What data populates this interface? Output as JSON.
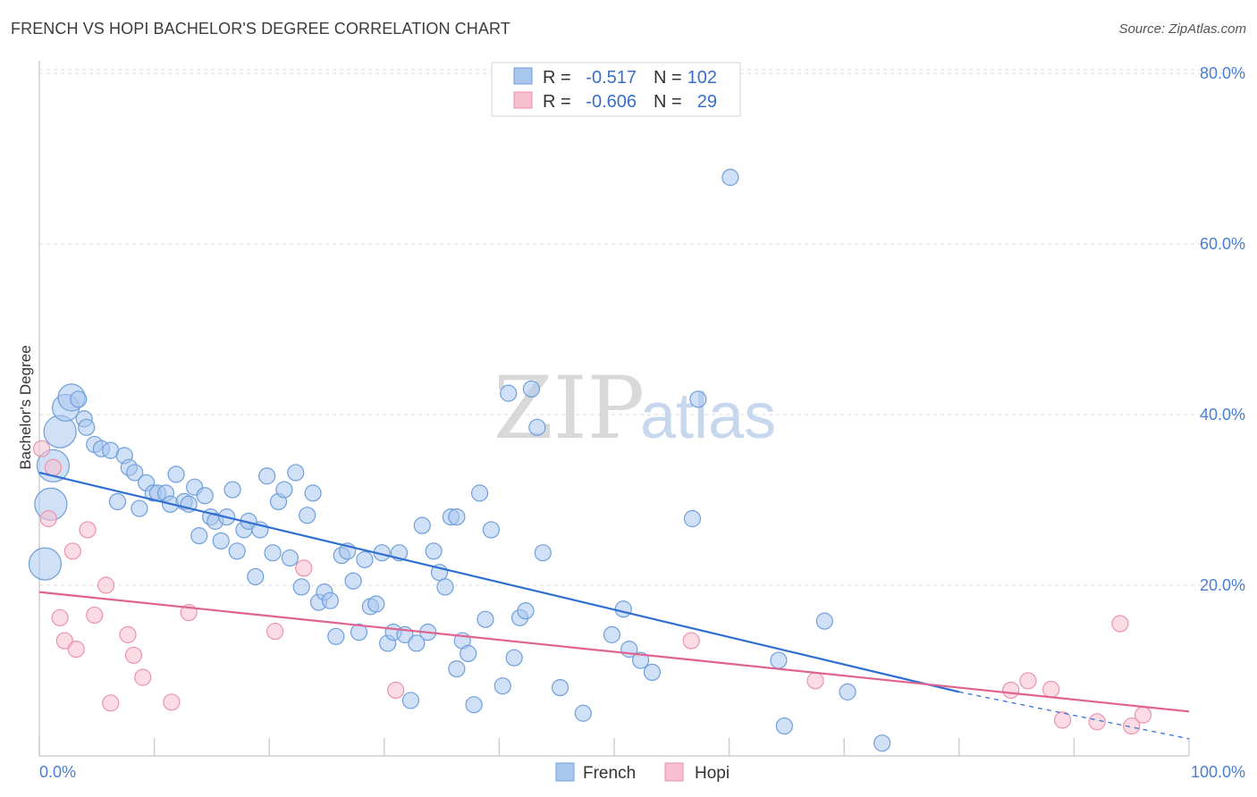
{
  "title": "FRENCH VS HOPI BACHELOR'S DEGREE CORRELATION CHART",
  "source": "Source: ZipAtlas.com",
  "watermark": {
    "zip": "ZIP",
    "atlas": "atlas"
  },
  "colors": {
    "french_fill": "#a9c7ee",
    "french_stroke": "#6f9fdb",
    "french_line": "#2f6fcf",
    "hopi_fill": "#f7bfd0",
    "hopi_stroke": "#eb92ad",
    "hopi_line": "#e0628f",
    "tick_text": "#4a7fd0",
    "grid": "#dedede"
  },
  "legend": {
    "rows": [
      {
        "r_label": "R =",
        "r_value": "-0.517",
        "n_label": "N =",
        "n_value": "102"
      },
      {
        "r_label": "R =",
        "r_value": "-0.606",
        "n_label": "N =",
        "n_value": "29"
      }
    ]
  },
  "bottom_legend": [
    "French",
    "Hopi"
  ],
  "chart_data": {
    "type": "scatter",
    "title": "FRENCH VS HOPI BACHELOR'S DEGREE CORRELATION CHART",
    "xlabel": "",
    "ylabel": "Bachelor's Degree",
    "xlim": [
      0,
      100
    ],
    "ylim": [
      0,
      85
    ],
    "x_tick_labels": [
      "0.0%",
      "100.0%"
    ],
    "y_ticks": [
      20,
      40,
      60,
      80
    ],
    "y_tick_labels": [
      "20.0%",
      "40.0%",
      "60.0%",
      "80.0%"
    ],
    "grid": true,
    "legend_position": "top-center",
    "series": [
      {
        "name": "French",
        "r": -0.517,
        "n": 102,
        "trend": {
          "x": [
            0,
            80
          ],
          "y": [
            33.2,
            7.5
          ],
          "dashed_to": [
            100,
            2.0
          ]
        },
        "points": [
          [
            0.5,
            22.5,
            3
          ],
          [
            1.0,
            29.5,
            3
          ],
          [
            1.2,
            34.0,
            3
          ],
          [
            1.8,
            38.0,
            3
          ],
          [
            2.3,
            40.8,
            2
          ],
          [
            2.8,
            42.0,
            2
          ],
          [
            3.4,
            41.8,
            1
          ],
          [
            3.9,
            39.5,
            1
          ],
          [
            4.1,
            38.5,
            1
          ],
          [
            4.8,
            36.5,
            1
          ],
          [
            5.4,
            36.0,
            1
          ],
          [
            6.2,
            35.8,
            1
          ],
          [
            6.8,
            29.8,
            1
          ],
          [
            7.4,
            35.2,
            1
          ],
          [
            7.8,
            33.8,
            1
          ],
          [
            8.3,
            33.2,
            1
          ],
          [
            8.7,
            29.0,
            1
          ],
          [
            9.3,
            32.0,
            1
          ],
          [
            9.9,
            30.8,
            1
          ],
          [
            10.3,
            30.8,
            1
          ],
          [
            11.0,
            30.8,
            1
          ],
          [
            11.4,
            29.5,
            1
          ],
          [
            11.9,
            33.0,
            1
          ],
          [
            12.6,
            29.8,
            1
          ],
          [
            13.0,
            29.5,
            1
          ],
          [
            13.5,
            31.5,
            1
          ],
          [
            13.9,
            25.8,
            1
          ],
          [
            14.4,
            30.5,
            1
          ],
          [
            14.9,
            28.0,
            1
          ],
          [
            15.3,
            27.5,
            1
          ],
          [
            15.8,
            25.2,
            1
          ],
          [
            16.3,
            28.0,
            1
          ],
          [
            16.8,
            31.2,
            1
          ],
          [
            17.2,
            24.0,
            1
          ],
          [
            17.8,
            26.5,
            1
          ],
          [
            18.2,
            27.5,
            1
          ],
          [
            18.8,
            21.0,
            1
          ],
          [
            19.2,
            26.5,
            1
          ],
          [
            19.8,
            32.8,
            1
          ],
          [
            20.3,
            23.8,
            1
          ],
          [
            20.8,
            29.8,
            1
          ],
          [
            21.3,
            31.2,
            1
          ],
          [
            21.8,
            23.2,
            1
          ],
          [
            22.3,
            33.2,
            1
          ],
          [
            22.8,
            19.8,
            1
          ],
          [
            23.3,
            28.2,
            1
          ],
          [
            23.8,
            30.8,
            1
          ],
          [
            24.3,
            18.0,
            1
          ],
          [
            24.8,
            19.2,
            1
          ],
          [
            25.3,
            18.2,
            1
          ],
          [
            25.8,
            14.0,
            1
          ],
          [
            26.3,
            23.5,
            1
          ],
          [
            26.8,
            24.0,
            1
          ],
          [
            27.3,
            20.5,
            1
          ],
          [
            27.8,
            14.5,
            1
          ],
          [
            28.3,
            23.0,
            1
          ],
          [
            28.8,
            17.5,
            1
          ],
          [
            29.3,
            17.8,
            1
          ],
          [
            29.8,
            23.8,
            1
          ],
          [
            30.3,
            13.2,
            1
          ],
          [
            30.8,
            14.5,
            1
          ],
          [
            31.3,
            23.8,
            1
          ],
          [
            31.8,
            14.2,
            1
          ],
          [
            32.3,
            6.5,
            1
          ],
          [
            32.8,
            13.2,
            1
          ],
          [
            33.3,
            27.0,
            1
          ],
          [
            33.8,
            14.5,
            1
          ],
          [
            34.3,
            24.0,
            1
          ],
          [
            34.8,
            21.5,
            1
          ],
          [
            35.3,
            19.8,
            1
          ],
          [
            35.8,
            28.0,
            1
          ],
          [
            36.3,
            10.2,
            1
          ],
          [
            36.8,
            13.5,
            1
          ],
          [
            37.3,
            12.0,
            1
          ],
          [
            37.8,
            6.0,
            1
          ],
          [
            38.3,
            30.8,
            1
          ],
          [
            38.8,
            16.0,
            1
          ],
          [
            39.3,
            26.5,
            1
          ],
          [
            40.3,
            8.2,
            1
          ],
          [
            40.8,
            42.5,
            1
          ],
          [
            41.3,
            11.5,
            1
          ],
          [
            41.8,
            16.2,
            1
          ],
          [
            42.3,
            17.0,
            1
          ],
          [
            42.8,
            43.0,
            1
          ],
          [
            43.3,
            38.5,
            1
          ],
          [
            43.8,
            23.8,
            1
          ],
          [
            45.3,
            8.0,
            1
          ],
          [
            47.3,
            5.0,
            1
          ],
          [
            49.8,
            14.2,
            1
          ],
          [
            50.8,
            17.2,
            1
          ],
          [
            51.3,
            12.5,
            1
          ],
          [
            52.3,
            11.2,
            1
          ],
          [
            53.3,
            9.8,
            1
          ],
          [
            56.8,
            27.8,
            1
          ],
          [
            57.3,
            41.8,
            1
          ],
          [
            60.1,
            67.8,
            1
          ],
          [
            64.3,
            11.2,
            1
          ],
          [
            64.8,
            3.5,
            1
          ],
          [
            68.3,
            15.8,
            1
          ],
          [
            70.3,
            7.5,
            1
          ],
          [
            73.3,
            1.5,
            1
          ],
          [
            36.3,
            28.0,
            1
          ]
        ]
      },
      {
        "name": "Hopi",
        "r": -0.606,
        "n": 29,
        "trend": {
          "x": [
            0,
            100
          ],
          "y": [
            19.2,
            5.2
          ]
        },
        "points": [
          [
            0.2,
            36.0,
            1
          ],
          [
            0.8,
            27.8,
            1
          ],
          [
            1.2,
            33.8,
            1
          ],
          [
            1.8,
            16.2,
            1
          ],
          [
            2.2,
            13.5,
            1
          ],
          [
            2.9,
            24.0,
            1
          ],
          [
            3.2,
            12.5,
            1
          ],
          [
            4.2,
            26.5,
            1
          ],
          [
            4.8,
            16.5,
            1
          ],
          [
            5.8,
            20.0,
            1
          ],
          [
            6.2,
            6.2,
            1
          ],
          [
            7.7,
            14.2,
            1
          ],
          [
            8.2,
            11.8,
            1
          ],
          [
            9.0,
            9.2,
            1
          ],
          [
            11.5,
            6.3,
            1
          ],
          [
            13.0,
            16.8,
            1
          ],
          [
            20.5,
            14.6,
            1
          ],
          [
            23.0,
            22.0,
            1
          ],
          [
            31.0,
            7.7,
            1
          ],
          [
            56.7,
            13.5,
            1
          ],
          [
            67.5,
            8.8,
            1
          ],
          [
            84.5,
            7.7,
            1
          ],
          [
            86.0,
            8.8,
            1
          ],
          [
            88.0,
            7.8,
            1
          ],
          [
            89.0,
            4.2,
            1
          ],
          [
            92.0,
            4.0,
            1
          ],
          [
            94.0,
            15.5,
            1
          ],
          [
            95.0,
            3.5,
            1
          ],
          [
            96.0,
            4.8,
            1
          ]
        ]
      }
    ]
  }
}
